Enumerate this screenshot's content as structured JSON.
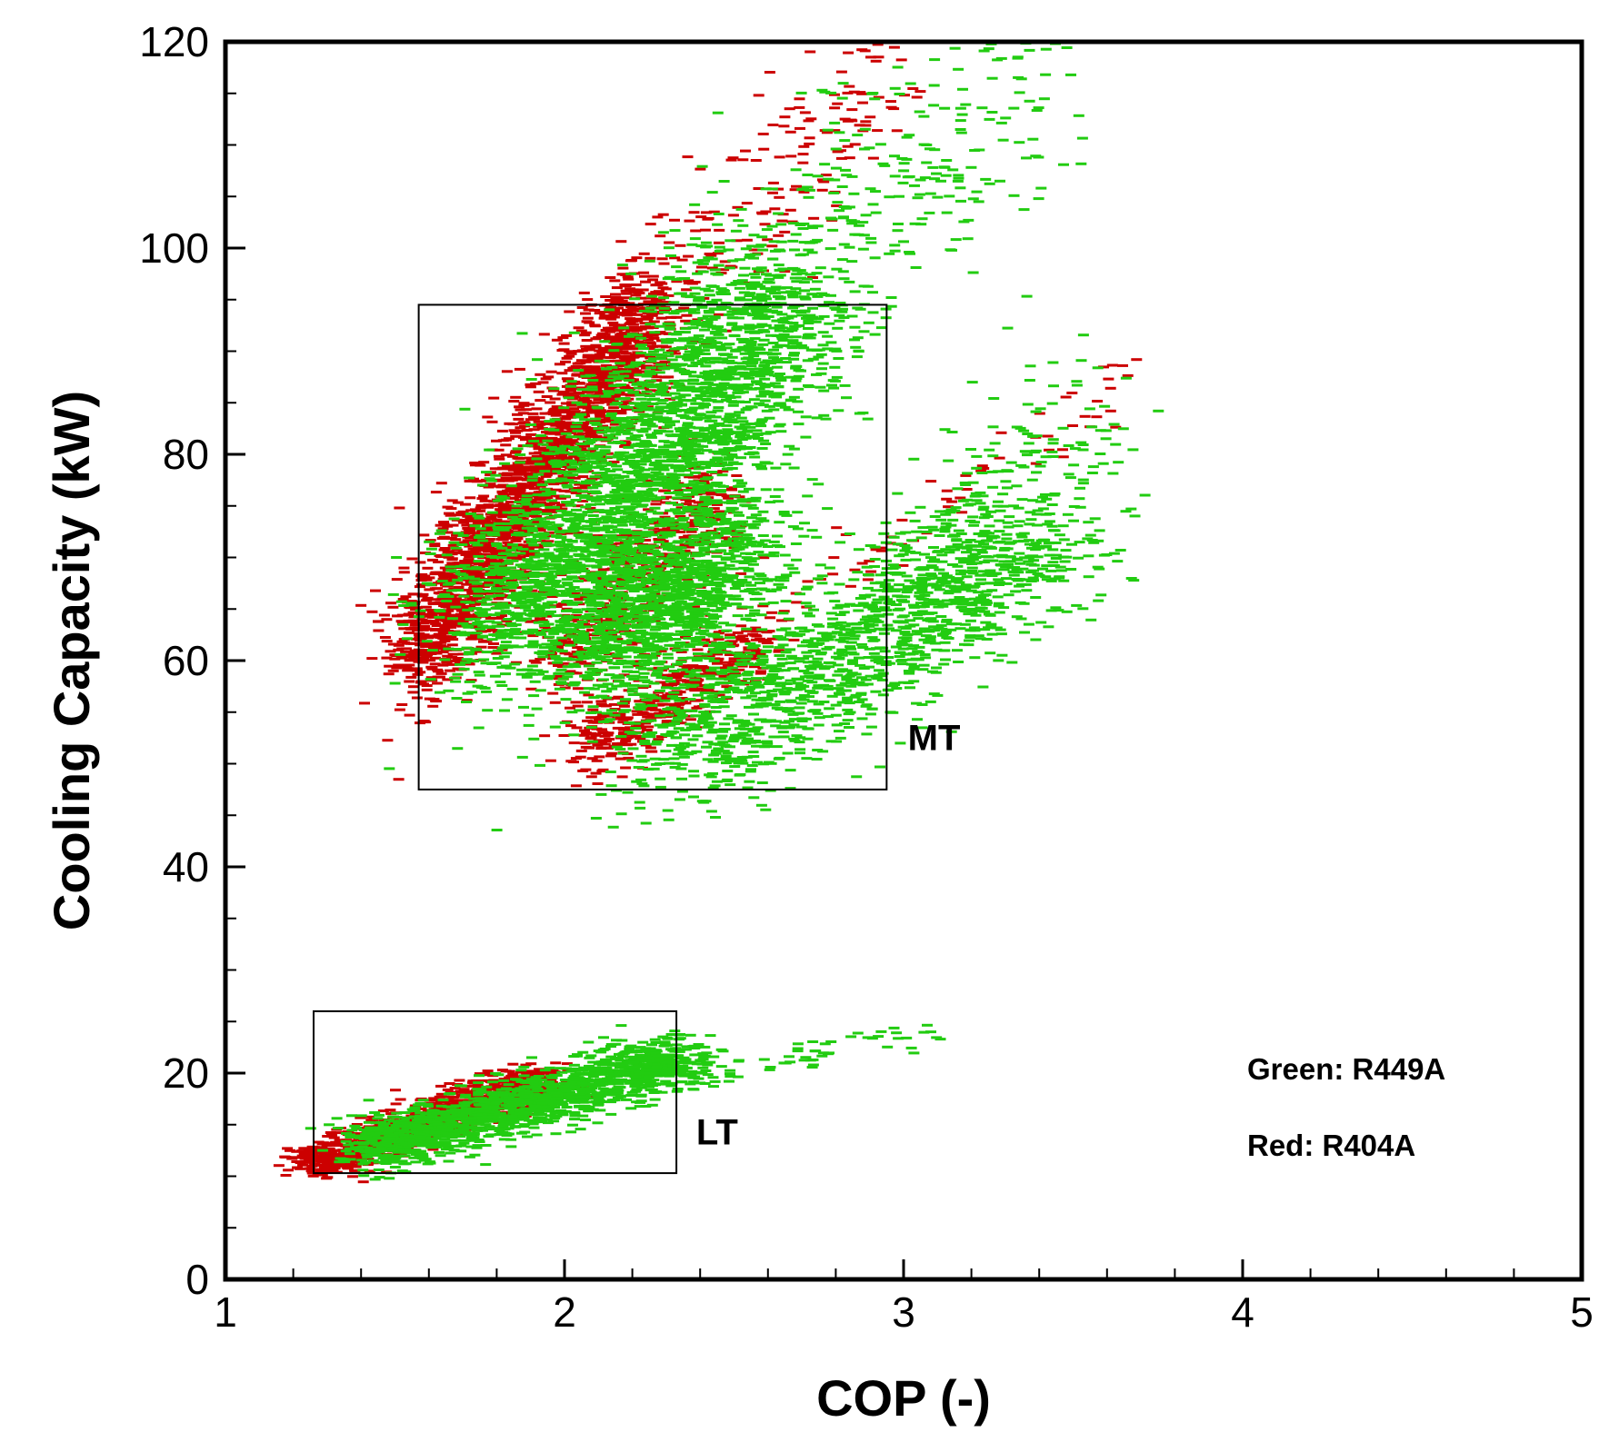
{
  "chart_data": {
    "type": "scatter",
    "title": "",
    "xlabel": "COP (-)",
    "ylabel": "Cooling Capacity (kW)",
    "xlim": [
      1,
      5
    ],
    "ylim": [
      0,
      120
    ],
    "x_ticks": [
      1,
      2,
      3,
      4,
      5
    ],
    "y_ticks": [
      0,
      20,
      40,
      60,
      80,
      100,
      120
    ],
    "x_minor_step": 0.2,
    "y_minor_step": 5,
    "grid": false,
    "legend_text": [
      "Green: R449A",
      "Red: R404A"
    ],
    "series": [
      {
        "name": "R449A",
        "color": "#22cc11",
        "marker": "dash",
        "clusters": [
          {
            "region": "MT",
            "x_from": 1.8,
            "y_from": 62,
            "x_to": 2.65,
            "y_to": 95,
            "spread_x": 0.14,
            "spread_y": 4.5,
            "count": 2600
          },
          {
            "region": "MT",
            "x_from": 2.2,
            "y_from": 80,
            "x_to": 3.3,
            "y_to": 118,
            "spread_x": 0.18,
            "spread_y": 5,
            "count": 500
          },
          {
            "region": "MT",
            "x_from": 2.1,
            "y_from": 60,
            "x_to": 2.55,
            "y_to": 72,
            "spread_x": 0.1,
            "spread_y": 3.5,
            "count": 1100
          },
          {
            "region": "MT",
            "x_from": 2.3,
            "y_from": 50,
            "x_to": 3.4,
            "y_to": 72,
            "spread_x": 0.15,
            "spread_y": 3,
            "count": 1300
          },
          {
            "region": "MT",
            "x_from": 2.9,
            "y_from": 60,
            "x_to": 3.55,
            "y_to": 84,
            "spread_x": 0.12,
            "spread_y": 4,
            "count": 300
          },
          {
            "region": "LT",
            "x_from": 1.4,
            "y_from": 12.5,
            "x_to": 2.35,
            "y_to": 21.5,
            "spread_x": 0.06,
            "spread_y": 1.3,
            "count": 1600
          },
          {
            "region": "LT",
            "x_from": 2.3,
            "y_from": 19,
            "x_to": 3.1,
            "y_to": 24.5,
            "spread_x": 0.05,
            "spread_y": 0.8,
            "count": 60
          }
        ]
      },
      {
        "name": "R404A",
        "color": "#cc0000",
        "marker": "dash",
        "clusters": [
          {
            "region": "MT",
            "x_from": 1.55,
            "y_from": 60,
            "x_to": 2.25,
            "y_to": 94,
            "spread_x": 0.06,
            "spread_y": 3.2,
            "count": 2200
          },
          {
            "region": "MT",
            "x_from": 2.3,
            "y_from": 95,
            "x_to": 2.95,
            "y_to": 118,
            "spread_x": 0.09,
            "spread_y": 3,
            "count": 180
          },
          {
            "region": "MT",
            "x_from": 1.95,
            "y_from": 60,
            "x_to": 2.45,
            "y_to": 76,
            "spread_x": 0.06,
            "spread_y": 2.5,
            "count": 550
          },
          {
            "region": "MT",
            "x_from": 2.05,
            "y_from": 51,
            "x_to": 2.6,
            "y_to": 63,
            "spread_x": 0.05,
            "spread_y": 1.8,
            "count": 450
          },
          {
            "region": "MT",
            "x_from": 2.8,
            "y_from": 68,
            "x_to": 3.75,
            "y_to": 89,
            "spread_x": 0.06,
            "spread_y": 1.5,
            "count": 60
          },
          {
            "region": "LT",
            "x_from": 1.25,
            "y_from": 11,
            "x_to": 1.95,
            "y_to": 19.5,
            "spread_x": 0.05,
            "spread_y": 0.9,
            "count": 1300
          }
        ]
      }
    ],
    "annotations": [
      {
        "text": "MT",
        "box": {
          "x": [
            1.57,
            2.95
          ],
          "y": [
            47.5,
            94.5
          ]
        },
        "label_at": {
          "x": 3.09,
          "y": 51.3
        }
      },
      {
        "text": "LT",
        "box": {
          "x": [
            1.26,
            2.33
          ],
          "y": [
            10.3,
            26
          ]
        },
        "label_at": {
          "x": 2.45,
          "y": 13.1
        }
      }
    ]
  }
}
